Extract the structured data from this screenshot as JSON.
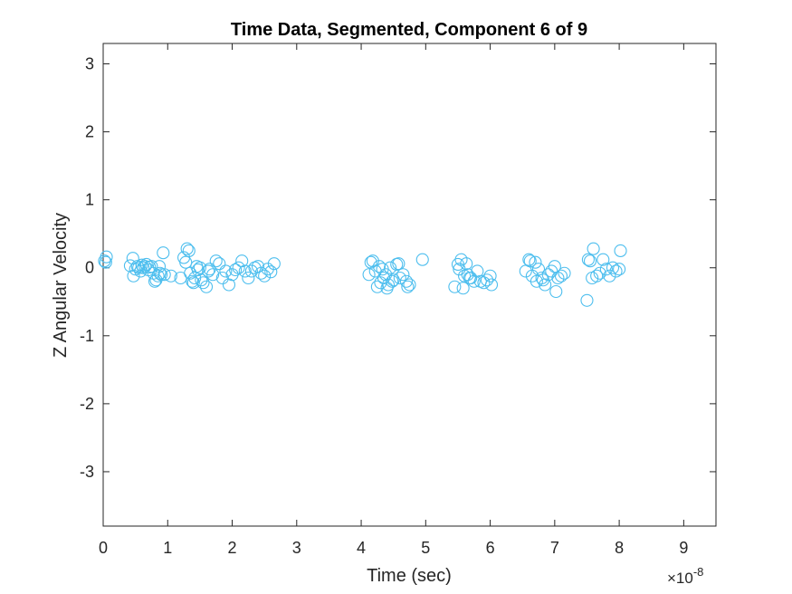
{
  "chart_data": {
    "type": "scatter",
    "title": "Time Data, Segmented, Component 6 of 9",
    "xlabel": "Time (sec)",
    "ylabel": "Z Angular Velocity",
    "x_scale_note": "×10^-8",
    "x_exponent_base": "×10",
    "x_exponent_power": "-8",
    "xlim": [
      0,
      9.5
    ],
    "ylim": [
      -3.8,
      3.3
    ],
    "x_ticks": [
      0,
      1,
      2,
      3,
      4,
      5,
      6,
      7,
      8,
      9
    ],
    "y_ticks": [
      -3,
      -2,
      -1,
      0,
      1,
      2,
      3
    ],
    "x_tick_labels": [
      "0",
      "1",
      "2",
      "3",
      "4",
      "5",
      "6",
      "7",
      "8",
      "9"
    ],
    "y_tick_labels": [
      "-3",
      "-2",
      "-1",
      "0",
      "1",
      "2",
      "3"
    ],
    "grid": false,
    "marker": "open-circle",
    "marker_color": "#4DBEEE",
    "series": [
      {
        "x": [
          0.02,
          0.05,
          0.04,
          0.42,
          0.47,
          0.46,
          0.5,
          0.53,
          0.55,
          0.58,
          0.6,
          0.62,
          0.65,
          0.67,
          0.7,
          0.72,
          0.75,
          0.78,
          0.8,
          0.82,
          0.85,
          0.87,
          0.88,
          0.9,
          0.93,
          0.95,
          1.05,
          1.2,
          1.25,
          1.28,
          1.3,
          1.33,
          1.35,
          1.38,
          1.4,
          1.42,
          1.45,
          1.47,
          1.5,
          1.52,
          1.55,
          1.6,
          1.63,
          1.65,
          1.7,
          1.75,
          1.8,
          1.85,
          1.9,
          1.95,
          2.0,
          2.05,
          2.1,
          2.15,
          2.2,
          2.25,
          2.3,
          2.35,
          2.4,
          2.45,
          2.5,
          2.55,
          2.6,
          2.65,
          4.12,
          4.15,
          4.18,
          4.22,
          4.25,
          4.28,
          4.3,
          4.33,
          4.35,
          4.38,
          4.4,
          4.42,
          4.45,
          4.48,
          4.5,
          4.55,
          4.58,
          4.6,
          4.65,
          4.7,
          4.72,
          4.75,
          4.95,
          5.45,
          5.5,
          5.52,
          5.55,
          5.58,
          5.6,
          5.63,
          5.65,
          5.68,
          5.7,
          5.75,
          5.8,
          5.85,
          5.9,
          5.95,
          6.0,
          6.02,
          6.55,
          6.6,
          6.62,
          6.65,
          6.7,
          6.72,
          6.75,
          6.8,
          6.82,
          6.85,
          6.9,
          6.95,
          7.0,
          7.02,
          7.05,
          7.1,
          7.15,
          7.5,
          7.52,
          7.55,
          7.58,
          7.6,
          7.65,
          7.7,
          7.75,
          7.8,
          7.85,
          7.9,
          7.95,
          8.0,
          8.02
        ],
        "y": [
          0.1,
          0.16,
          0.08,
          0.03,
          -0.12,
          0.14,
          -0.02,
          0.02,
          0.0,
          -0.05,
          0.04,
          0.0,
          0.02,
          0.05,
          -0.03,
          0.01,
          0.02,
          -0.08,
          -0.2,
          -0.18,
          -0.12,
          0.02,
          -0.08,
          -0.1,
          0.22,
          -0.1,
          -0.12,
          -0.15,
          0.15,
          0.08,
          0.28,
          0.25,
          -0.08,
          -0.2,
          -0.22,
          -0.15,
          0.02,
          -0.03,
          0.0,
          -0.18,
          -0.22,
          -0.28,
          -0.05,
          -0.02,
          -0.1,
          0.1,
          0.06,
          -0.15,
          -0.05,
          -0.25,
          -0.1,
          -0.03,
          0.0,
          0.1,
          -0.05,
          -0.15,
          -0.05,
          0.0,
          0.02,
          -0.08,
          -0.12,
          -0.02,
          -0.06,
          0.06,
          -0.1,
          0.08,
          0.1,
          -0.05,
          -0.28,
          0.02,
          -0.22,
          -0.02,
          -0.15,
          -0.1,
          -0.3,
          -0.25,
          0.0,
          -0.2,
          -0.18,
          0.05,
          0.06,
          -0.15,
          -0.1,
          -0.2,
          -0.28,
          -0.25,
          0.12,
          -0.28,
          0.05,
          -0.02,
          0.12,
          -0.3,
          -0.12,
          0.06,
          -0.1,
          -0.15,
          -0.15,
          -0.2,
          -0.05,
          -0.2,
          -0.22,
          -0.18,
          -0.12,
          -0.25,
          -0.05,
          0.12,
          0.1,
          -0.12,
          0.08,
          -0.2,
          -0.02,
          -0.15,
          -0.18,
          -0.25,
          -0.1,
          -0.05,
          0.02,
          -0.35,
          -0.15,
          -0.12,
          -0.08,
          -0.48,
          0.12,
          0.1,
          -0.15,
          0.28,
          -0.12,
          -0.08,
          0.12,
          -0.02,
          -0.12,
          0.0,
          -0.05,
          -0.02,
          0.25
        ]
      }
    ]
  }
}
